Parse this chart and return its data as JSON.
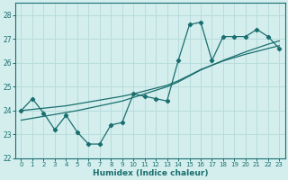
{
  "xlabel": "Humidex (Indice chaleur)",
  "background_color": "#d4eeee",
  "line_color": "#1a6e6e",
  "grid_color": "#b8dcdc",
  "xlim": [
    -0.5,
    23.5
  ],
  "ylim": [
    22,
    28.5
  ],
  "yticks": [
    22,
    23,
    24,
    25,
    26,
    27,
    28
  ],
  "xticks": [
    0,
    1,
    2,
    3,
    4,
    5,
    6,
    7,
    8,
    9,
    10,
    11,
    12,
    13,
    14,
    15,
    16,
    17,
    18,
    19,
    20,
    21,
    22,
    23
  ],
  "x": [
    0,
    1,
    2,
    3,
    4,
    5,
    6,
    7,
    8,
    9,
    10,
    11,
    12,
    13,
    14,
    15,
    16,
    17,
    18,
    19,
    20,
    21,
    22,
    23
  ],
  "line1": [
    24.0,
    24.5,
    23.9,
    23.2,
    23.8,
    23.1,
    22.6,
    22.6,
    23.4,
    23.5,
    24.7,
    24.6,
    24.5,
    24.4,
    26.1,
    27.6,
    27.7,
    26.1,
    27.1,
    27.1,
    27.1,
    27.4,
    27.1,
    26.6
  ],
  "line2": [
    24.0,
    24.05,
    24.1,
    24.15,
    24.2,
    24.28,
    24.36,
    24.44,
    24.52,
    24.6,
    24.7,
    24.82,
    24.94,
    25.06,
    25.25,
    25.48,
    25.72,
    25.9,
    26.08,
    26.22,
    26.36,
    26.48,
    26.6,
    26.72
  ],
  "line3": [
    23.6,
    23.68,
    23.76,
    23.84,
    23.92,
    24.0,
    24.1,
    24.2,
    24.3,
    24.4,
    24.55,
    24.7,
    24.85,
    25.0,
    25.2,
    25.45,
    25.7,
    25.9,
    26.1,
    26.28,
    26.46,
    26.62,
    26.78,
    26.92
  ]
}
